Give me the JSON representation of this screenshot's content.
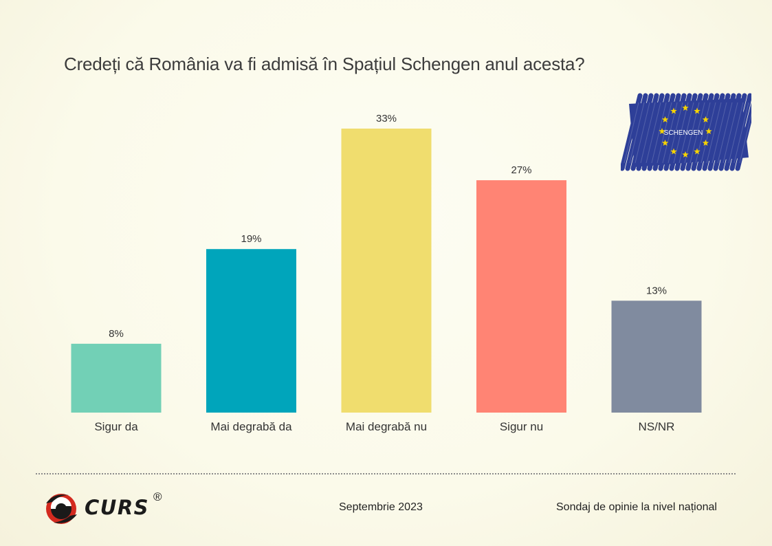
{
  "title": "Credeți că România va fi admisă în Spațiul Schengen anul acesta?",
  "chart_data": {
    "type": "bar",
    "title": "Credeți că România va fi admisă în Spațiul Schengen anul acesta?",
    "categories": [
      "Sigur da",
      "Mai degrabă da",
      "Mai degrabă nu",
      "Sigur nu",
      "NS/NR"
    ],
    "values": [
      8,
      19,
      33,
      27,
      13
    ],
    "value_labels": [
      "8%",
      "19%",
      "33%",
      "27%",
      "13%"
    ],
    "colors": [
      "#72d0b6",
      "#00a5bb",
      "#f0dd6e",
      "#ff8474",
      "#808b9f"
    ],
    "unit": "%",
    "ylim": [
      0,
      33
    ],
    "grid": false,
    "legend": "none"
  },
  "flag": {
    "label": "SCHENGEN",
    "color": "#2e3f98",
    "star_color": "#f6d300"
  },
  "logo": {
    "text": "CURS",
    "registered": "®"
  },
  "footer": {
    "date": "Septembrie 2023",
    "description": "Sondaj de opinie la nivel național"
  }
}
